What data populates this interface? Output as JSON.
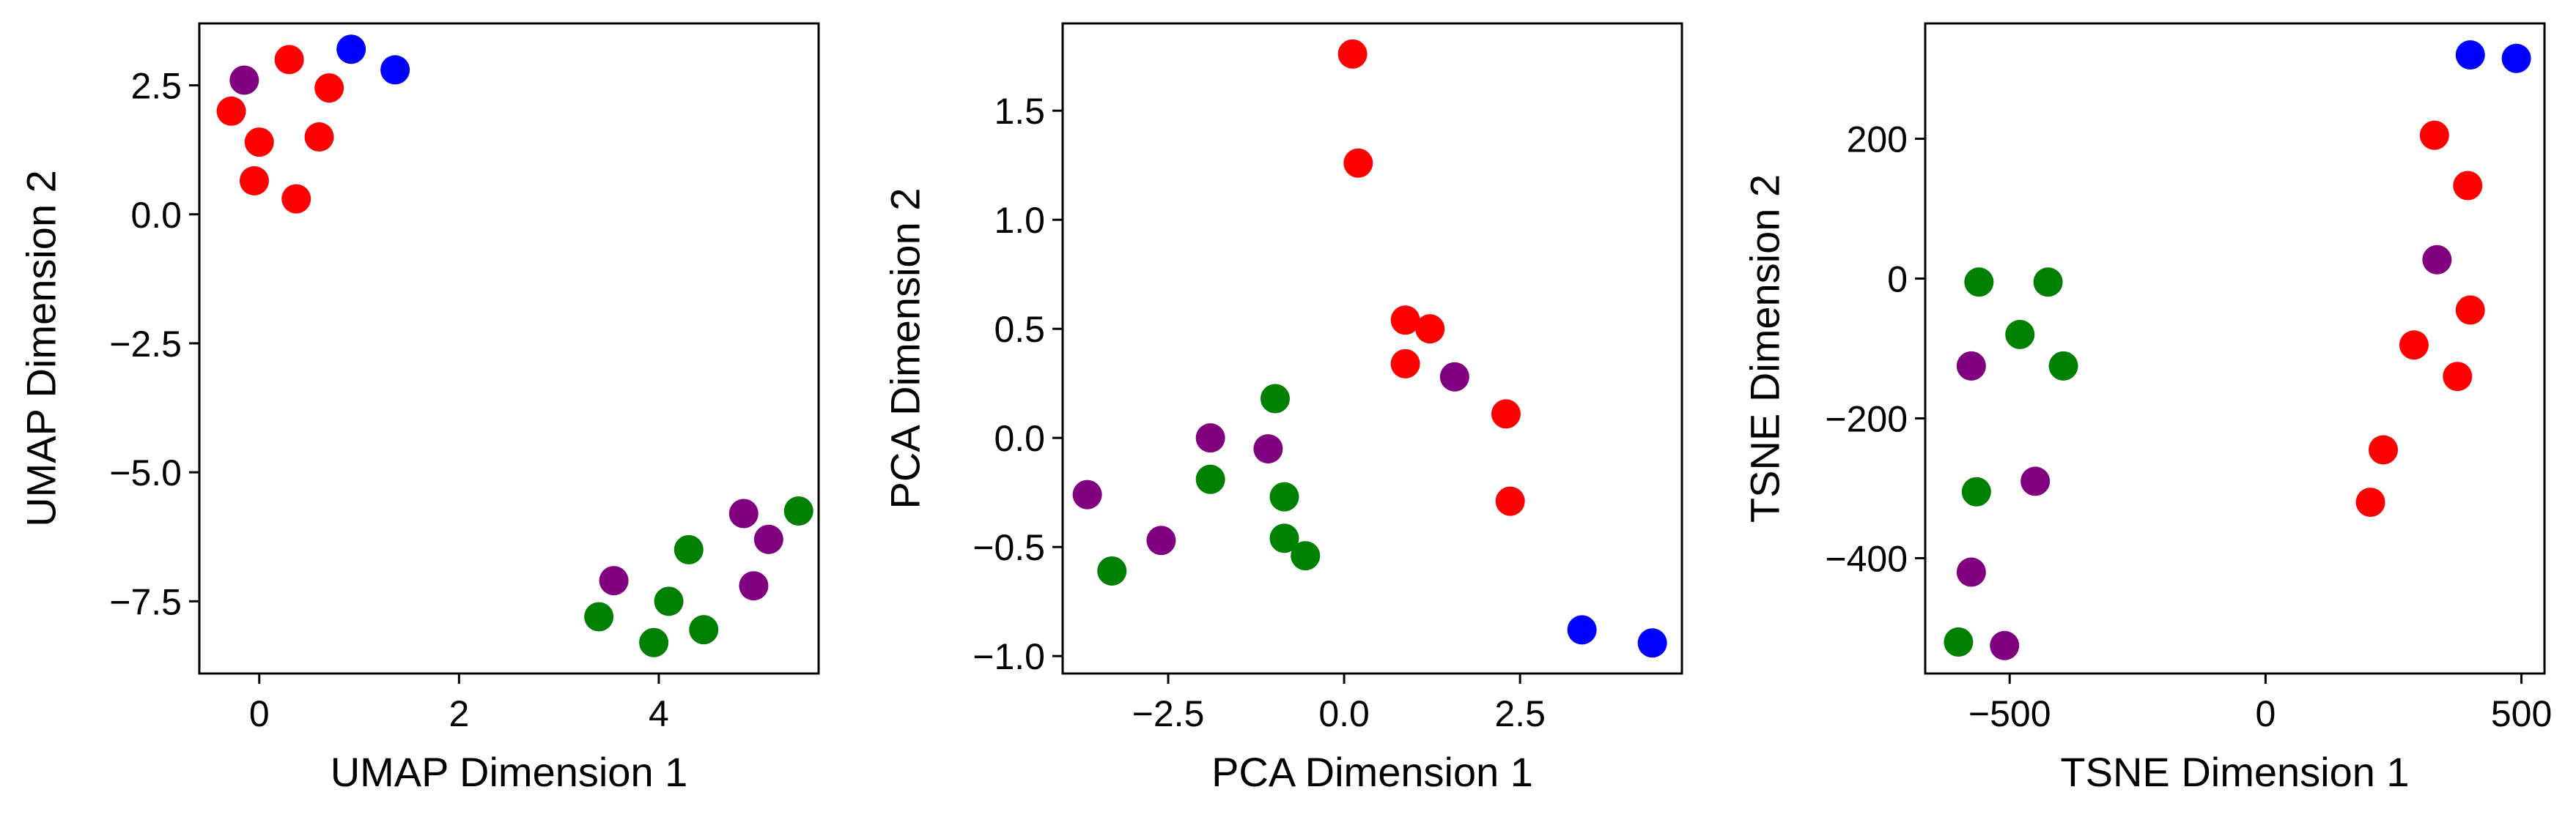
{
  "chart_data": [
    {
      "type": "scatter",
      "title": "",
      "xlabel": "UMAP Dimension 1",
      "ylabel": "UMAP Dimension 2",
      "xlim": [
        -0.6,
        5.6
      ],
      "ylim": [
        -8.9,
        3.7
      ],
      "xticks": [
        0,
        2,
        4
      ],
      "xtick_labels": [
        "0",
        "2",
        "4"
      ],
      "yticks": [
        2.5,
        0.0,
        -2.5,
        -5.0,
        -7.5
      ],
      "ytick_labels": [
        "2.5",
        "0.0",
        "−2.5",
        "−5.0",
        "−7.5"
      ],
      "grid": false,
      "legend": "none",
      "points": [
        {
          "x": 0.92,
          "y": 3.2,
          "color": "#0000ff"
        },
        {
          "x": 1.36,
          "y": 2.8,
          "color": "#0000ff"
        },
        {
          "x": 0.3,
          "y": 3.0,
          "color": "#ff0000"
        },
        {
          "x": 0.7,
          "y": 2.45,
          "color": "#ff0000"
        },
        {
          "x": -0.28,
          "y": 2.0,
          "color": "#ff0000"
        },
        {
          "x": 0.0,
          "y": 1.4,
          "color": "#ff0000"
        },
        {
          "x": 0.6,
          "y": 1.5,
          "color": "#ff0000"
        },
        {
          "x": -0.05,
          "y": 0.65,
          "color": "#ff0000"
        },
        {
          "x": 0.37,
          "y": 0.3,
          "color": "#ff0000"
        },
        {
          "x": -0.15,
          "y": 2.6,
          "color": "#800080"
        },
        {
          "x": 3.55,
          "y": -7.1,
          "color": "#800080"
        },
        {
          "x": 4.85,
          "y": -5.8,
          "color": "#800080"
        },
        {
          "x": 5.1,
          "y": -6.3,
          "color": "#800080"
        },
        {
          "x": 4.95,
          "y": -7.2,
          "color": "#800080"
        },
        {
          "x": 5.4,
          "y": -5.75,
          "color": "#008000"
        },
        {
          "x": 4.3,
          "y": -6.5,
          "color": "#008000"
        },
        {
          "x": 4.1,
          "y": -7.5,
          "color": "#008000"
        },
        {
          "x": 3.4,
          "y": -7.8,
          "color": "#008000"
        },
        {
          "x": 3.95,
          "y": -8.3,
          "color": "#008000"
        },
        {
          "x": 4.45,
          "y": -8.05,
          "color": "#008000"
        }
      ]
    },
    {
      "type": "scatter",
      "title": "",
      "xlabel": "PCA Dimension 1",
      "ylabel": "PCA Dimension 2",
      "xlim": [
        -4.0,
        4.8
      ],
      "ylim": [
        -1.08,
        1.9
      ],
      "xticks": [
        -2.5,
        0.0,
        2.5
      ],
      "xtick_labels": [
        "−2.5",
        "0.0",
        "2.5"
      ],
      "yticks": [
        1.5,
        1.0,
        0.5,
        0.0,
        -0.5,
        -1.0
      ],
      "ytick_labels": [
        "1.5",
        "1.0",
        "0.5",
        "0.0",
        "−0.5",
        "−1.0"
      ],
      "grid": false,
      "legend": "none",
      "points": [
        {
          "x": 0.12,
          "y": 1.76,
          "color": "#ff0000"
        },
        {
          "x": 0.2,
          "y": 1.26,
          "color": "#ff0000"
        },
        {
          "x": 0.87,
          "y": 0.54,
          "color": "#ff0000"
        },
        {
          "x": 1.22,
          "y": 0.5,
          "color": "#ff0000"
        },
        {
          "x": 0.87,
          "y": 0.34,
          "color": "#ff0000"
        },
        {
          "x": 2.3,
          "y": 0.11,
          "color": "#ff0000"
        },
        {
          "x": 2.36,
          "y": -0.29,
          "color": "#ff0000"
        },
        {
          "x": 1.57,
          "y": 0.28,
          "color": "#800080"
        },
        {
          "x": -1.9,
          "y": 0.0,
          "color": "#800080"
        },
        {
          "x": -1.08,
          "y": -0.05,
          "color": "#800080"
        },
        {
          "x": -3.65,
          "y": -0.26,
          "color": "#800080"
        },
        {
          "x": -2.6,
          "y": -0.47,
          "color": "#800080"
        },
        {
          "x": -0.98,
          "y": 0.18,
          "color": "#008000"
        },
        {
          "x": -1.9,
          "y": -0.19,
          "color": "#008000"
        },
        {
          "x": -0.85,
          "y": -0.27,
          "color": "#008000"
        },
        {
          "x": -0.85,
          "y": -0.46,
          "color": "#008000"
        },
        {
          "x": -0.55,
          "y": -0.54,
          "color": "#008000"
        },
        {
          "x": -3.3,
          "y": -0.61,
          "color": "#008000"
        },
        {
          "x": 3.38,
          "y": -0.88,
          "color": "#0000ff"
        },
        {
          "x": 4.38,
          "y": -0.94,
          "color": "#0000ff"
        }
      ]
    },
    {
      "type": "scatter",
      "title": "",
      "xlabel": "TSNE Dimension 1",
      "ylabel": "TSNE Dimension 2",
      "xlim": [
        -665,
        545
      ],
      "ylim": [
        -565,
        365
      ],
      "xticks": [
        -500,
        0,
        500
      ],
      "xtick_labels": [
        "−500",
        "0",
        "500"
      ],
      "yticks": [
        200,
        0,
        -200,
        -400
      ],
      "ytick_labels": [
        "200",
        "0",
        "−200",
        "−400"
      ],
      "grid": false,
      "legend": "none",
      "points": [
        {
          "x": 400,
          "y": 320,
          "color": "#0000ff"
        },
        {
          "x": 490,
          "y": 315,
          "color": "#0000ff"
        },
        {
          "x": 330,
          "y": 205,
          "color": "#ff0000"
        },
        {
          "x": 395,
          "y": 133,
          "color": "#ff0000"
        },
        {
          "x": 400,
          "y": -45,
          "color": "#ff0000"
        },
        {
          "x": 290,
          "y": -95,
          "color": "#ff0000"
        },
        {
          "x": 375,
          "y": -140,
          "color": "#ff0000"
        },
        {
          "x": 230,
          "y": -245,
          "color": "#ff0000"
        },
        {
          "x": 205,
          "y": -320,
          "color": "#ff0000"
        },
        {
          "x": 335,
          "y": 27,
          "color": "#800080"
        },
        {
          "x": -575,
          "y": -125,
          "color": "#800080"
        },
        {
          "x": -450,
          "y": -290,
          "color": "#800080"
        },
        {
          "x": -575,
          "y": -420,
          "color": "#800080"
        },
        {
          "x": -510,
          "y": -525,
          "color": "#800080"
        },
        {
          "x": -560,
          "y": -5,
          "color": "#008000"
        },
        {
          "x": -425,
          "y": -5,
          "color": "#008000"
        },
        {
          "x": -480,
          "y": -80,
          "color": "#008000"
        },
        {
          "x": -395,
          "y": -125,
          "color": "#008000"
        },
        {
          "x": -565,
          "y": -305,
          "color": "#008000"
        },
        {
          "x": -600,
          "y": -520,
          "color": "#008000"
        }
      ]
    }
  ]
}
